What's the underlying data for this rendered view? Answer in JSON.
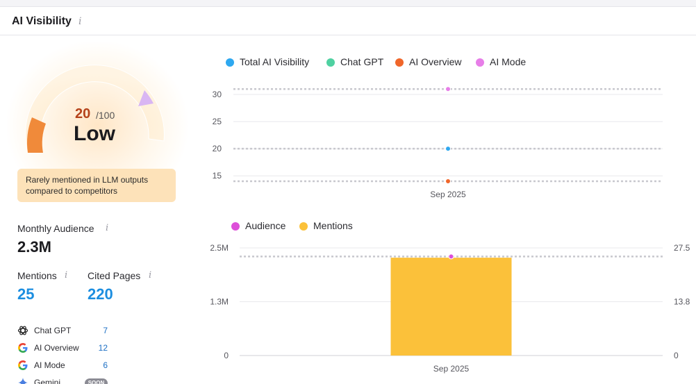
{
  "header": {
    "title": "AI Visibility",
    "info": "i"
  },
  "gauge": {
    "score": "20",
    "max": "/100",
    "level": "Low",
    "value": 20,
    "note": "Rarely mentioned in LLM outputs compared to competitors"
  },
  "stats": {
    "monthly_audience": {
      "label": "Monthly Audience",
      "value": "2.3M"
    },
    "mentions": {
      "label": "Mentions",
      "value": "25"
    },
    "cited_pages": {
      "label": "Cited Pages",
      "value": "220"
    }
  },
  "sources": [
    {
      "name": "Chat GPT",
      "count": "7",
      "icon": "chatgpt-icon"
    },
    {
      "name": "AI Overview",
      "count": "12",
      "icon": "google-icon"
    },
    {
      "name": "AI Mode",
      "count": "6",
      "icon": "google-icon"
    },
    {
      "name": "Gemini",
      "badge": "SOON",
      "icon": "gemini-icon"
    }
  ],
  "colors": {
    "total": "#2ea8f0",
    "chatgpt": "#4fd1a1",
    "overview": "#f0662a",
    "mode": "#e77ee8",
    "audience": "#dd4fd9",
    "mentions": "#fbc13a",
    "accent": "#1c8ee0"
  },
  "chart_data": [
    {
      "type": "scatter",
      "legend": [
        "Total AI Visibility",
        "Chat GPT",
        "AI Overview",
        "AI Mode"
      ],
      "categories": [
        "Sep 2025"
      ],
      "y_ticks": [
        "30",
        "25",
        "20",
        "15"
      ],
      "ylim": [
        14,
        30
      ],
      "series": [
        {
          "name": "Total AI Visibility",
          "values": [
            20
          ]
        },
        {
          "name": "Chat GPT",
          "values": []
        },
        {
          "name": "AI Overview",
          "values": [
            14
          ]
        },
        {
          "name": "AI Mode",
          "values": [
            31
          ]
        }
      ],
      "grid": true,
      "legend_position": "top"
    },
    {
      "type": "bar",
      "legend": [
        "Audience",
        "Mentions"
      ],
      "categories": [
        "Sep 2025"
      ],
      "left_ticks": [
        "2.5M",
        "1.3M",
        "0"
      ],
      "right_ticks": [
        "27.5",
        "13.8",
        "0"
      ],
      "left_ylim": [
        0,
        2.5
      ],
      "right_ylim": [
        0,
        27.5
      ],
      "series": [
        {
          "name": "Audience",
          "type": "point",
          "axis": "left",
          "values": [
            2.3
          ]
        },
        {
          "name": "Mentions",
          "type": "bar",
          "axis": "right",
          "values": [
            25
          ]
        }
      ],
      "grid": true,
      "legend_position": "top"
    }
  ]
}
